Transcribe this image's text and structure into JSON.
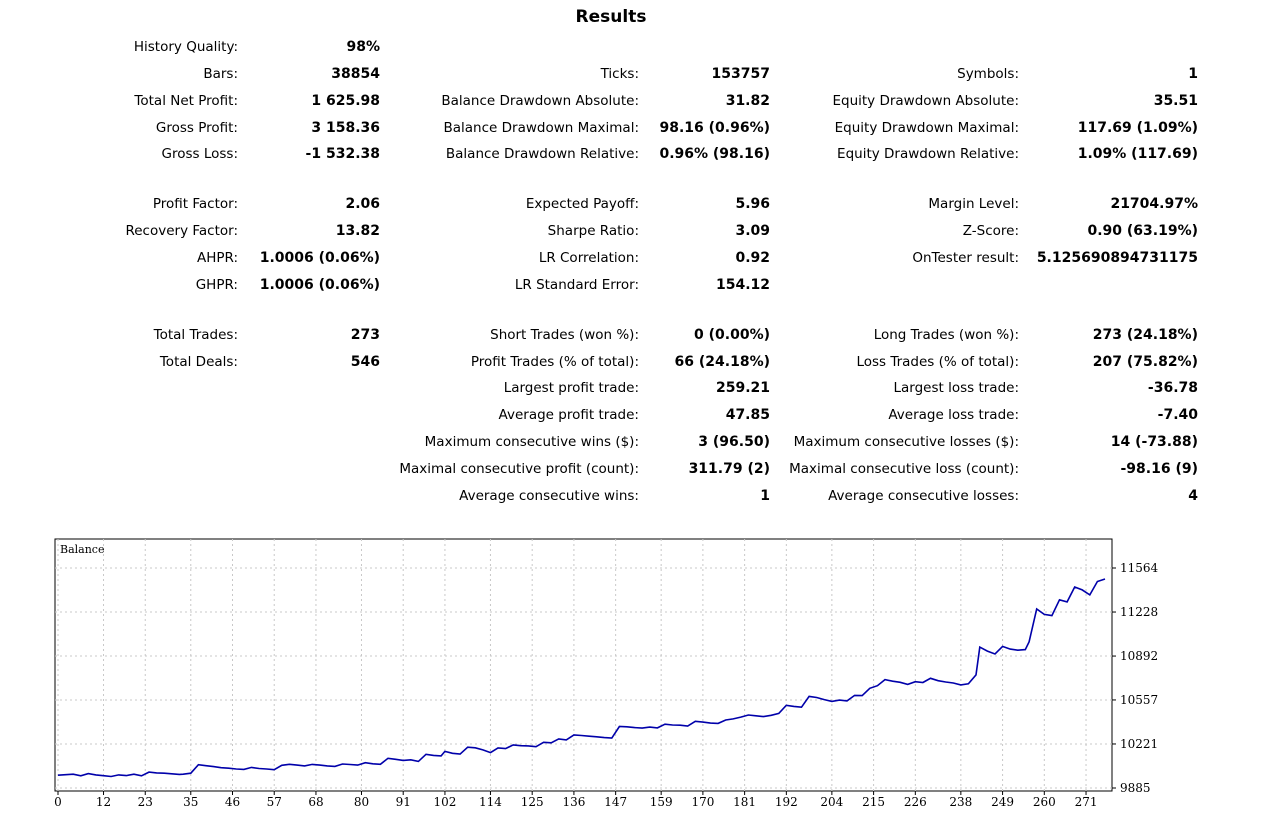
{
  "title": "Results",
  "columns": [
    [
      {
        "label": "History Quality:",
        "value": "98%"
      },
      {
        "label": "Bars:",
        "value": "38854"
      },
      {
        "label": "Total Net Profit:",
        "value": "1 625.98"
      },
      {
        "label": "Gross Profit:",
        "value": "3 158.36"
      },
      {
        "label": "Gross Loss:",
        "value": "-1 532.38"
      },
      null,
      {
        "label": "Profit Factor:",
        "value": "2.06"
      },
      {
        "label": "Recovery Factor:",
        "value": "13.82"
      },
      {
        "label": "AHPR:",
        "value": "1.0006 (0.06%)"
      },
      {
        "label": "GHPR:",
        "value": "1.0006 (0.06%)"
      },
      null,
      {
        "label": "Total Trades:",
        "value": "273"
      },
      {
        "label": "Total Deals:",
        "value": "546"
      }
    ],
    [
      null,
      {
        "label": "Ticks:",
        "value": "153757"
      },
      {
        "label": "Balance Drawdown Absolute:",
        "value": "31.82"
      },
      {
        "label": "Balance Drawdown Maximal:",
        "value": "98.16 (0.96%)"
      },
      {
        "label": "Balance Drawdown Relative:",
        "value": "0.96% (98.16)"
      },
      null,
      {
        "label": "Expected Payoff:",
        "value": "5.96"
      },
      {
        "label": "Sharpe Ratio:",
        "value": "3.09"
      },
      {
        "label": "LR Correlation:",
        "value": "0.92"
      },
      {
        "label": "LR Standard Error:",
        "value": "154.12"
      },
      null,
      {
        "label": "Short Trades (won %):",
        "value": "0 (0.00%)"
      },
      {
        "label": "Profit Trades (% of total):",
        "value": "66 (24.18%)"
      },
      {
        "label": "Largest profit trade:",
        "value": "259.21"
      },
      {
        "label": "Average profit trade:",
        "value": "47.85"
      },
      {
        "label": "Maximum consecutive wins ($):",
        "value": "3 (96.50)"
      },
      {
        "label": "Maximal consecutive profit (count):",
        "value": "311.79 (2)"
      },
      {
        "label": "Average consecutive wins:",
        "value": "1"
      }
    ],
    [
      null,
      {
        "label": "Symbols:",
        "value": "1"
      },
      {
        "label": "Equity Drawdown Absolute:",
        "value": "35.51"
      },
      {
        "label": "Equity Drawdown Maximal:",
        "value": "117.69 (1.09%)"
      },
      {
        "label": "Equity Drawdown Relative:",
        "value": "1.09% (117.69)"
      },
      null,
      {
        "label": "Margin Level:",
        "value": "21704.97%"
      },
      {
        "label": "Z-Score:",
        "value": "0.90 (63.19%)"
      },
      {
        "label": "OnTester result:",
        "value": "5.125690894731175"
      },
      null,
      null,
      {
        "label": "Long Trades (won %):",
        "value": "273 (24.18%)"
      },
      {
        "label": "Loss Trades (% of total):",
        "value": "207 (75.82%)"
      },
      {
        "label": "Largest loss trade:",
        "value": "-36.78"
      },
      {
        "label": "Average loss trade:",
        "value": "-7.40"
      },
      {
        "label": "Maximum consecutive losses ($):",
        "value": "14 (-73.88)"
      },
      {
        "label": "Maximal consecutive loss (count):",
        "value": "-98.16 (9)"
      },
      {
        "label": "Average consecutive losses:",
        "value": "4"
      }
    ]
  ],
  "chart_data": {
    "type": "line",
    "title": "Balance",
    "xlabel": "",
    "ylabel": "",
    "x_ticks": [
      0,
      12,
      23,
      35,
      46,
      57,
      68,
      80,
      91,
      102,
      114,
      125,
      136,
      147,
      159,
      170,
      181,
      192,
      204,
      215,
      226,
      238,
      249,
      260,
      271
    ],
    "y_ticks": [
      9885,
      10221,
      10557,
      10892,
      11228,
      11564
    ],
    "xlim": [
      0,
      276
    ],
    "ylim": [
      9885,
      11564
    ],
    "grid": true,
    "series": [
      {
        "color": "#0000aa",
        "x": [
          0,
          4,
          6,
          8,
          10,
          12,
          14,
          16,
          18,
          20,
          22,
          24,
          26,
          28,
          30,
          32,
          33,
          35,
          37,
          39,
          41,
          43,
          45,
          47,
          49,
          51,
          53,
          55,
          57,
          59,
          61,
          63,
          65,
          67,
          69,
          71,
          73,
          75,
          77,
          79,
          81,
          83,
          85,
          87,
          89,
          91,
          93,
          95,
          97,
          99,
          101,
          102,
          104,
          106,
          108,
          110,
          112,
          114,
          116,
          118,
          120,
          122,
          124,
          126,
          128,
          130,
          132,
          134,
          136,
          138,
          140,
          142,
          144,
          146,
          148,
          150,
          152,
          154,
          156,
          158,
          160,
          162,
          164,
          166,
          168,
          170,
          172,
          174,
          176,
          178,
          180,
          182,
          184,
          186,
          188,
          190,
          192,
          194,
          196,
          198,
          200,
          202,
          204,
          206,
          208,
          210,
          212,
          214,
          216,
          218,
          220,
          222,
          224,
          226,
          228,
          230,
          232,
          234,
          236,
          238,
          240,
          242,
          243,
          245,
          247,
          249,
          251,
          253,
          255,
          256,
          258,
          260,
          262,
          264,
          266,
          268,
          270,
          272,
          274,
          276
        ],
        "y": [
          9983,
          9990,
          9978,
          9995,
          9985,
          9979,
          9973,
          9985,
          9980,
          9990,
          9978,
          10006,
          10000,
          9998,
          9993,
          9989,
          9990,
          9998,
          10063,
          10055,
          10048,
          10040,
          10036,
          10030,
          10027,
          10042,
          10034,
          10030,
          10025,
          10058,
          10066,
          10060,
          10054,
          10065,
          10060,
          10054,
          10050,
          10068,
          10064,
          10060,
          10078,
          10070,
          10066,
          10112,
          10104,
          10096,
          10100,
          10088,
          10142,
          10134,
          10130,
          10164,
          10150,
          10144,
          10196,
          10192,
          10176,
          10155,
          10190,
          10186,
          10214,
          10208,
          10206,
          10200,
          10234,
          10230,
          10260,
          10252,
          10290,
          10286,
          10280,
          10276,
          10270,
          10266,
          10354,
          10352,
          10346,
          10342,
          10350,
          10344,
          10372,
          10366,
          10364,
          10358,
          10394,
          10388,
          10380,
          10378,
          10404,
          10412,
          10426,
          10442,
          10436,
          10430,
          10440,
          10454,
          10516,
          10508,
          10502,
          10584,
          10576,
          10560,
          10546,
          10556,
          10550,
          10592,
          10590,
          10646,
          10666,
          10712,
          10700,
          10692,
          10676,
          10696,
          10690,
          10722,
          10704,
          10694,
          10686,
          10672,
          10680,
          10748,
          10960,
          10930,
          10908,
          10966,
          10945,
          10937,
          10941,
          11001,
          11251,
          11210,
          11201,
          11321,
          11305,
          11419,
          11397,
          11359,
          11461,
          11480
        ]
      }
    ]
  }
}
